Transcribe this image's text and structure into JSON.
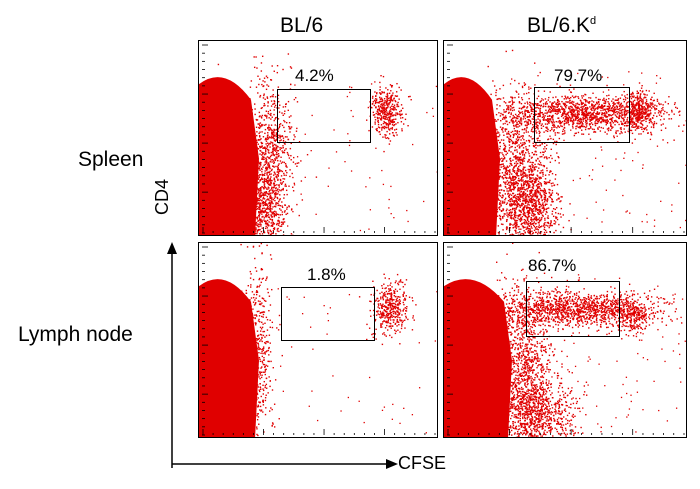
{
  "columns": {
    "bl6": "BL/6",
    "bl6kd_base": "BL/6.K",
    "bl6kd_sup": "d"
  },
  "rows": {
    "spleen": "Spleen",
    "lymph": "Lymph node"
  },
  "axes": {
    "y": "CD4",
    "x": "CFSE"
  },
  "panels": {
    "spleen_bl6": {
      "percent": "4.2%"
    },
    "spleen_bl6kd": {
      "percent": "79.7%"
    },
    "lymph_bl6": {
      "percent": "1.8%"
    },
    "lymph_bl6kd": {
      "percent": "86.7%"
    }
  },
  "colors": {
    "dots": "#e00000",
    "axis": "#000000"
  }
}
